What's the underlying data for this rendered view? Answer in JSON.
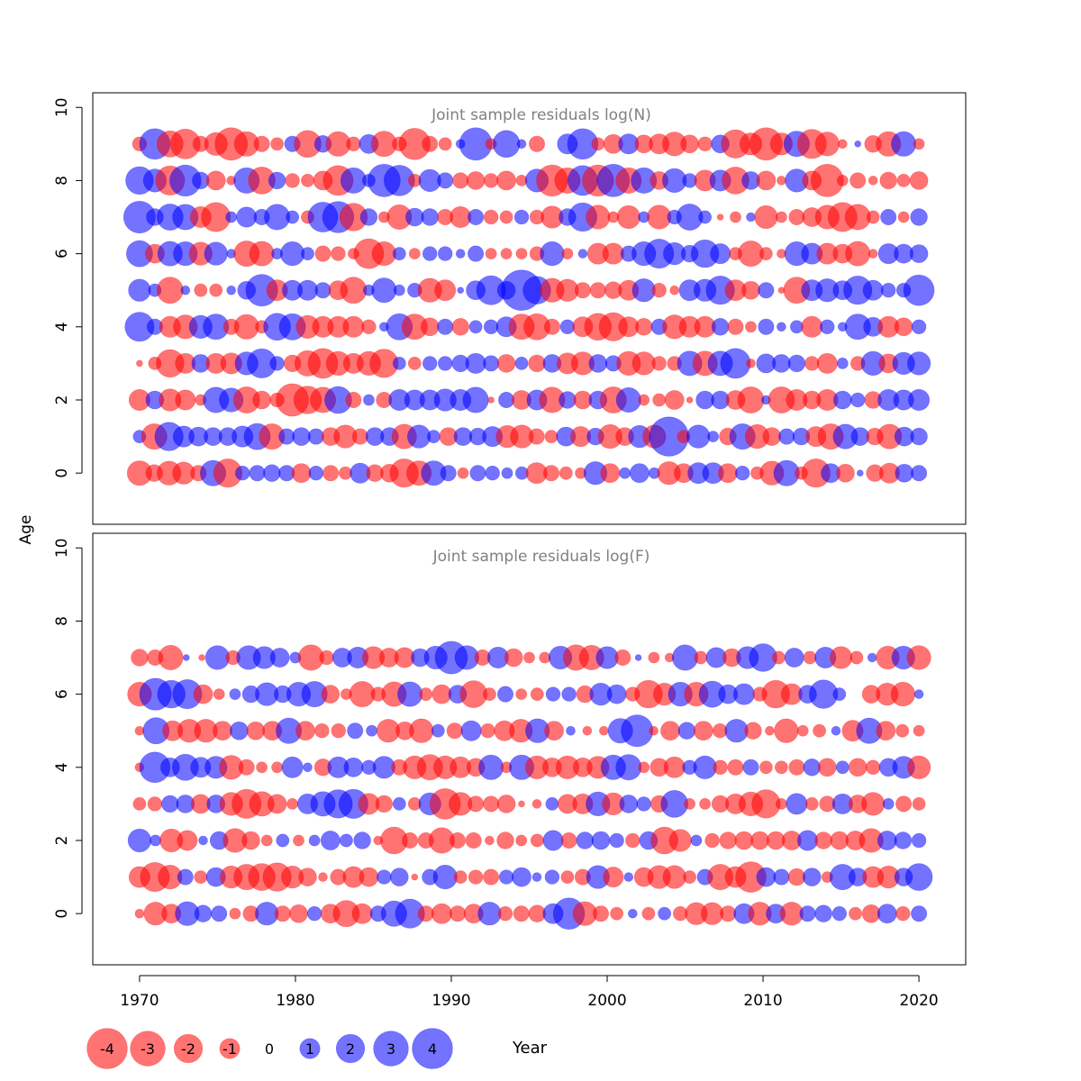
{
  "shared": {
    "ylabel": "Age",
    "xlabel": "Year",
    "x_ticks": [
      1970,
      1980,
      1990,
      2000,
      2010,
      2020
    ],
    "xlim": [
      1967,
      2023
    ],
    "colors": {
      "positive": "#0000ff",
      "negative": "#ff0000",
      "alpha": 0.55
    }
  },
  "chart_data": [
    {
      "type": "scatter",
      "subtype": "bubble",
      "title": "Joint sample residuals log(N)",
      "ylim": [
        -1.4,
        10.4
      ],
      "y_ticks": [
        0,
        2,
        4,
        6,
        8,
        10
      ],
      "x_range": [
        1970,
        2020
      ],
      "ages": [
        0,
        1,
        2,
        3,
        4,
        5,
        6,
        7,
        8,
        9
      ],
      "residuals_by_age": {
        "9": [
          -0.5,
          2.3,
          -1.7,
          -2.2,
          -0.6,
          -1.3,
          -2.6,
          -1.5,
          -0.6,
          -0.4,
          0.6,
          -1.8,
          0.7,
          -1.5,
          -0.5,
          0.9,
          -1.6,
          -0.5,
          -2.4,
          -0.6,
          -0.4,
          0.2,
          2.6,
          -0.3,
          1.8,
          0.2,
          -0.6,
          0.0,
          1.0,
          2.3,
          -0.4,
          -0.9,
          1.0,
          -0.8,
          -1.0,
          -1.4,
          -0.8,
          -0.5,
          0.8,
          -2.0,
          -1.2,
          -2.6,
          -1.2,
          1.6,
          -2.1,
          -1.4,
          -0.2,
          0.1,
          -0.7,
          -1.5,
          1.5,
          -0.3
        ],
        "8": [
          1.9,
          1.3,
          -2.1,
          2.4,
          0.7,
          -0.9,
          -0.2,
          1.6,
          -1.8,
          0.7,
          -0.5,
          -0.4,
          -0.9,
          -2.2,
          1.6,
          0.4,
          2.6,
          2.3,
          -0.4,
          1.2,
          0.6,
          -0.6,
          -0.8,
          -0.5,
          -0.9,
          -0.3,
          1.3,
          -2.4,
          -1.6,
          2.2,
          -2.4,
          2.6,
          -1.6,
          1.6,
          -0.8,
          1.4,
          0.5,
          -1.1,
          1.1,
          -1.8,
          0.8,
          -0.9,
          -0.2,
          1.3,
          -0.9,
          -2.6,
          -0.3,
          -0.6,
          -0.2,
          -0.7,
          -0.4,
          -0.8
        ],
        "7": [
          2.5,
          0.7,
          1.7,
          1.6,
          -1.1,
          -2.1,
          0.3,
          1.0,
          0.6,
          1.6,
          0.4,
          -0.4,
          2.2,
          2.4,
          -1.9,
          0.7,
          -0.3,
          -1.5,
          0.8,
          0.7,
          -0.6,
          -1.1,
          0.6,
          -0.5,
          -0.4,
          0.5,
          -0.5,
          -1.2,
          0.7,
          2.0,
          -1.4,
          -0.3,
          -1.3,
          0.3,
          -1.4,
          0.5,
          1.7,
          0.4,
          -0.1,
          -0.3,
          0.2,
          -1.3,
          -0.3,
          -0.6,
          -0.9,
          -1.4,
          -2.1,
          -1.6,
          -0.4,
          0.6,
          -0.3,
          0.7
        ],
        "6": [
          1.7,
          -0.9,
          1.5,
          1.4,
          -1.3,
          1.3,
          0.2,
          -1.6,
          -1.5,
          0.3,
          1.4,
          0.4,
          -0.6,
          -0.5,
          -0.3,
          -2.2,
          -1.4,
          0.4,
          -0.3,
          0.5,
          0.5,
          0.2,
          0.6,
          -0.3,
          -0.3,
          -0.3,
          -0.5,
          1.4,
          -0.3,
          0.2,
          -1.1,
          -1.1,
          0.6,
          1.4,
          2.1,
          1.2,
          0.7,
          1.9,
          1.0,
          -0.4,
          -1.6,
          -0.4,
          -0.2,
          1.4,
          1.1,
          -1.1,
          -0.9,
          -1.5,
          -0.2,
          1.0,
          0.9,
          0.8
        ],
        "5": [
          1.2,
          0.4,
          -1.7,
          0.2,
          -0.4,
          -0.4,
          0.2,
          0.8,
          2.5,
          -1.1,
          1.0,
          1.0,
          0.6,
          -0.9,
          -1.7,
          0.3,
          1.5,
          0.3,
          0.5,
          -1.4,
          -1.1,
          0.1,
          0.9,
          2.1,
          0.8,
          4.0,
          1.9,
          -1.4,
          -1.2,
          -0.6,
          -0.6,
          -0.7,
          -1.0,
          1.3,
          -0.5,
          -0.2,
          1.1,
          1.2,
          2.0,
          -1.1,
          -0.8,
          0.6,
          -0.1,
          -1.7,
          1.1,
          1.3,
          0.9,
          2.0,
          1.0,
          0.5,
          0.5,
          2.3
        ],
        "4": [
          2.1,
          0.6,
          -1.1,
          -1.4,
          1.3,
          1.6,
          -0.6,
          -1.5,
          -0.4,
          1.8,
          1.7,
          -1.3,
          -1.1,
          -1.1,
          -1.1,
          -0.5,
          0.2,
          1.7,
          -1.6,
          -0.8,
          0.6,
          -0.7,
          0.4,
          0.5,
          1.0,
          -1.6,
          -1.7,
          -0.6,
          0.5,
          -1.0,
          -1.8,
          -2.0,
          -1.0,
          -0.7,
          0.6,
          -1.4,
          -1.1,
          -1.1,
          0.7,
          -0.6,
          -0.3,
          0.6,
          0.2,
          0.4,
          -1.1,
          0.5,
          0.2,
          1.6,
          0.9,
          -1.1,
          -0.8,
          0.5
        ],
        "3": [
          -0.1,
          -0.4,
          -1.9,
          -1.0,
          0.8,
          -1.0,
          -1.1,
          1.3,
          2.1,
          0.5,
          -0.7,
          -1.6,
          -2.2,
          -1.4,
          -1.0,
          -1.4,
          -2.0,
          0.4,
          -0.4,
          0.5,
          0.5,
          0.7,
          1.0,
          0.6,
          -0.8,
          0.4,
          -0.7,
          0.8,
          -1.1,
          -1.3,
          0.8,
          0.6,
          -1.4,
          -1.3,
          -0.5,
          -0.5,
          1.5,
          -1.5,
          1.5,
          2.2,
          -0.2,
          0.9,
          0.8,
          0.7,
          -0.5,
          -1.0,
          0.3,
          -0.5,
          1.4,
          -0.9,
          1.2,
          1.3
        ],
        "2": [
          -1.1,
          0.8,
          -1.2,
          -1.0,
          -0.3,
          1.6,
          1.4,
          -1.7,
          -0.8,
          -0.5,
          -2.6,
          -1.9,
          -1.6,
          1.8,
          -0.6,
          0.3,
          -0.6,
          1.1,
          1.0,
          1.0,
          1.2,
          1.1,
          1.6,
          -0.1,
          0.6,
          -0.9,
          1.0,
          -1.6,
          0.7,
          -0.8,
          0.8,
          -1.7,
          1.5,
          -0.3,
          -0.4,
          -0.9,
          -0.1,
          0.8,
          0.8,
          -0.9,
          -1.7,
          0.2,
          -1.7,
          -1.1,
          -0.8,
          -1.1,
          0.8,
          0.5,
          -0.7,
          1.1,
          1.0,
          1.1
        ],
        "1": [
          0.4,
          -1.6,
          2.0,
          1.1,
          0.9,
          0.8,
          0.8,
          1.1,
          1.7,
          -1.6,
          0.6,
          0.8,
          0.6,
          -0.8,
          -1.3,
          -0.6,
          0.8,
          0.8,
          -1.5,
          1.3,
          0.4,
          -0.8,
          0.8,
          0.7,
          1.0,
          -1.2,
          -1.3,
          -0.6,
          -0.4,
          0.9,
          -1.0,
          0.7,
          -1.4,
          -0.8,
          1.2,
          -1.3,
          3.8,
          -0.4,
          1.3,
          0.3,
          -0.7,
          1.6,
          -1.4,
          -0.8,
          0.6,
          0.7,
          -1.0,
          -1.6,
          1.5,
          0.8,
          -0.7,
          -1.5,
          0.9,
          0.7
        ],
        "0": [
          -1.5,
          -0.7,
          -1.4,
          -1.2,
          -0.6,
          1.6,
          -2.0,
          0.5,
          0.6,
          0.7,
          0.6,
          -0.9,
          0.5,
          -0.6,
          -0.4,
          1.0,
          -0.7,
          -0.8,
          -2.0,
          -1.5,
          1.5,
          0.6,
          -0.3,
          0.6,
          0.5,
          0.3,
          0.4,
          -1.1,
          -0.6,
          -0.4,
          -0.3,
          1.3,
          -0.9,
          0.3,
          0.9,
          0.3,
          -1.3,
          -0.9,
          1.1,
          1.1,
          -0.9,
          0.5,
          -0.4,
          -1.4,
          1.6,
          -0.4,
          -2.0,
          0.9,
          -0.8,
          0.1,
          -0.7,
          -1.0,
          0.8,
          0.6
        ]
      }
    },
    {
      "type": "scatter",
      "subtype": "bubble",
      "title": "Joint sample residuals log(F)",
      "ylim": [
        -1.4,
        10.4
      ],
      "y_ticks": [
        0,
        2,
        4,
        6,
        8,
        10
      ],
      "x_range": [
        1970,
        2020
      ],
      "ages": [
        0,
        1,
        2,
        3,
        4,
        5,
        6,
        7
      ],
      "residuals_by_age": {
        "7": [
          -0.7,
          -0.6,
          -1.5,
          0.1,
          -0.1,
          1.4,
          -0.5,
          1.4,
          1.2,
          0.9,
          0.3,
          -1.6,
          -0.5,
          0.9,
          1.1,
          -1.2,
          -0.9,
          -1.0,
          0.8,
          1.3,
          2.6,
          1.4,
          -0.6,
          1.1,
          -0.8,
          -0.3,
          -0.3,
          1.3,
          -1.6,
          -1.5,
          1.2,
          -0.6,
          0.1,
          -0.3,
          -0.2,
          1.6,
          -0.4,
          1.0,
          -0.8,
          1.2,
          1.9,
          -0.4,
          0.9,
          -0.4,
          1.1,
          -1.2,
          -0.4,
          0.2,
          -1.3,
          1.3,
          -1.4
        ],
        "6": [
          -1.4,
          2.5,
          1.9,
          2.1,
          -0.9,
          -0.3,
          0.3,
          0.7,
          1.3,
          0.7,
          1.4,
          1.6,
          -0.8,
          -0.3,
          -1.6,
          -0.5,
          -1.5,
          1.5,
          -0.4,
          -0.9,
          0.8,
          -1.8,
          -0.4,
          0.6,
          -0.3,
          -0.4,
          0.5,
          0.5,
          -0.7,
          1.2,
          0.9,
          -0.5,
          -1.9,
          -1.2,
          1.4,
          -1.4,
          1.7,
          0.9,
          1.1,
          -0.5,
          -1.9,
          -1.1,
          0.8,
          2.0,
          0.4,
          0.0,
          -0.8,
          -1.2,
          -1.4,
          0.2
        ],
        "5": [
          -0.2,
          1.7,
          -1.0,
          -1.3,
          -1.3,
          -0.9,
          0.8,
          -0.8,
          -0.9,
          1.6,
          -0.9,
          -0.5,
          -0.5,
          0.6,
          0.3,
          -1.3,
          -0.8,
          -1.4,
          0.4,
          -0.6,
          1.0,
          -0.5,
          -1.0,
          -1.3,
          1.4,
          -0.9,
          0.2,
          -0.2,
          -0.2,
          1.5,
          2.5,
          -0.2,
          -0.9,
          0.7,
          -0.9,
          -0.5,
          1.3,
          -0.7,
          -0.2,
          -1.4,
          -0.3,
          -0.4,
          0.2,
          -1.1,
          1.6,
          -0.9,
          -0.4,
          -0.3
        ],
        "4": [
          -0.2,
          2.3,
          0.9,
          1.7,
          1.0,
          1.2,
          -1.4,
          -0.6,
          -0.3,
          -0.3,
          1.1,
          0.2,
          -0.7,
          1.1,
          0.9,
          0.5,
          1.2,
          -0.6,
          -1.3,
          -1.6,
          -1.3,
          -1.1,
          -0.8,
          1.5,
          -0.3,
          1.5,
          -1.3,
          -0.9,
          -1.3,
          -0.9,
          -1.2,
          1.5,
          1.6,
          -0.3,
          -0.8,
          -1.1,
          0.5,
          1.3,
          -0.5,
          -0.6,
          0.6,
          -0.4,
          -0.4,
          -0.6,
          0.7,
          -0.8,
          0.4,
          -0.8,
          -0.5,
          0.8,
          1.2,
          -1.3
        ],
        "3": [
          -0.4,
          -0.5,
          0.7,
          0.8,
          -0.9,
          0.8,
          -1.3,
          -2.1,
          -1.5,
          -0.9,
          -0.3,
          1.0,
          1.5,
          2.0,
          2.1,
          -1.1,
          -0.7,
          0.4,
          -0.4,
          1.2,
          -2.3,
          -1.3,
          -0.6,
          -0.6,
          -0.8,
          -0.1,
          -0.2,
          0.4,
          -0.9,
          -1.0,
          1.4,
          -1.2,
          0.8,
          0.5,
          -0.7,
          1.8,
          -0.3,
          -0.3,
          -0.7,
          -1.0,
          -1.4,
          -2.0,
          -0.3,
          1.1,
          -0.4,
          -0.6,
          1.0,
          -0.8,
          -1.3,
          0.3,
          -0.6,
          -0.4
        ],
        "2": [
          1.3,
          0.3,
          -1.3,
          -1.0,
          0.2,
          0.8,
          -1.4,
          -0.8,
          -0.3,
          0.4,
          -0.3,
          0.3,
          0.9,
          0.4,
          0.7,
          -0.2,
          -1.8,
          -0.6,
          -0.6,
          -1.6,
          -0.6,
          -0.6,
          -0.2,
          -0.7,
          -0.3,
          -0.4,
          1.0,
          -0.6,
          0.7,
          0.8,
          0.5,
          -0.5,
          0.8,
          -1.8,
          -1.2,
          0.3,
          -0.5,
          -0.7,
          -0.8,
          -0.8,
          -0.8,
          -0.9,
          1.0,
          -0.7,
          -0.8,
          -0.9,
          -1.4,
          0.9,
          0.7,
          0.5
        ],
        "1": [
          -1.1,
          -2.1,
          -1.4,
          0.6,
          -0.4,
          0.9,
          -1.2,
          -1.6,
          -1.8,
          -2.0,
          -1.2,
          -0.8,
          -0.2,
          -0.6,
          -1.1,
          -0.9,
          0.5,
          0.8,
          -0.1,
          0.6,
          1.4,
          -0.4,
          -0.5,
          -0.6,
          0.5,
          0.9,
          0.2,
          0.5,
          -0.4,
          -0.6,
          1.3,
          -1.0,
          0.2,
          -0.9,
          -1.3,
          -1.3,
          -0.4,
          0.6,
          -1.6,
          -1.1,
          -2.3,
          0.9,
          0.6,
          -0.7,
          0.8,
          -0.3,
          1.6,
          0.8,
          -1.1,
          -1.2,
          0.8,
          1.8
        ],
        "0": [
          -0.2,
          -1.3,
          -0.9,
          1.4,
          0.7,
          0.6,
          -0.3,
          -0.6,
          1.3,
          -0.6,
          -0.8,
          0.5,
          -0.9,
          -1.7,
          -1.0,
          0.6,
          1.6,
          2.1,
          -0.6,
          -1.0,
          -0.6,
          -0.9,
          1.3,
          -0.5,
          -0.6,
          -0.7,
          1.0,
          2.4,
          -1.4,
          -0.6,
          -0.4,
          0.2,
          -0.4,
          0.4,
          -0.5,
          -1.2,
          -1.2,
          -0.6,
          1.0,
          -1.3,
          0.9,
          -1.3,
          0.6,
          0.7,
          0.5,
          -0.4,
          -0.8,
          0.9,
          -0.5,
          0.6
        ]
      }
    }
  ],
  "legend": {
    "items": [
      {
        "label": "-4",
        "value": -4
      },
      {
        "label": "-3",
        "value": -3
      },
      {
        "label": "-2",
        "value": -2
      },
      {
        "label": "-1",
        "value": -1
      },
      {
        "label": "0",
        "value": 0
      },
      {
        "label": "1",
        "value": 1
      },
      {
        "label": "2",
        "value": 2
      },
      {
        "label": "3",
        "value": 3
      },
      {
        "label": "4",
        "value": 4
      }
    ]
  }
}
